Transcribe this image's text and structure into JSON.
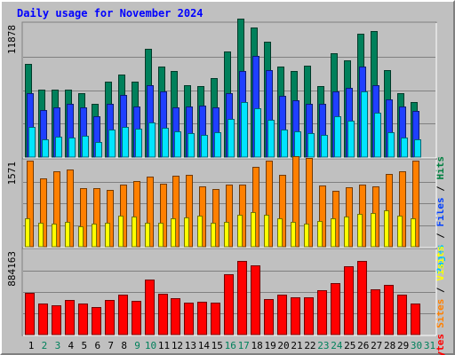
{
  "chart_data": {
    "title": "Daily usage for November 2024",
    "days": [
      "1",
      "2",
      "3",
      "4",
      "5",
      "6",
      "7",
      "8",
      "9",
      "10",
      "11",
      "12",
      "13",
      "14",
      "15",
      "16",
      "17",
      "18",
      "19",
      "20",
      "21",
      "22",
      "23",
      "24",
      "25",
      "26",
      "27",
      "28",
      "29",
      "30",
      "31"
    ],
    "weekend_days": [
      "2",
      "3",
      "9",
      "10",
      "16",
      "17",
      "23",
      "24",
      "30",
      "31"
    ],
    "panels": [
      {
        "type": "bar",
        "label_parts": [
          "Pages",
          "Files",
          "Hits"
        ],
        "label_colors": [
          "#00c0ff",
          "#0040ff",
          "#008040"
        ],
        "max_label": "11878",
        "ymax": 11878,
        "series": [
          {
            "name": "Hits",
            "color": "#00805b",
            "values": [
              8250,
              6000,
              6000,
              6000,
              5700,
              4700,
              6700,
              7300,
              6700,
              9600,
              8000,
              7600,
              6400,
              6300,
              7000,
              9400,
              12300,
              11500,
              10200,
              8000,
              7600,
              8100,
              6300,
              9200,
              8600,
              10900,
              11200,
              7700,
              5700,
              4900,
              0
            ]
          },
          {
            "name": "Files",
            "color": "#1f3fff",
            "values": [
              5700,
              4200,
              4400,
              4700,
              4400,
              3600,
              4700,
              5500,
              4500,
              6400,
              5800,
              4400,
              4500,
              4600,
              4400,
              5700,
              7600,
              9000,
              7700,
              5400,
              5000,
              4700,
              4700,
              5800,
              6100,
              8000,
              6400,
              5100,
              4500,
              4100,
              0
            ]
          },
          {
            "name": "Pages",
            "color": "#00e5ff",
            "values": [
              2700,
              1600,
              1800,
              1700,
              1900,
              1300,
              2400,
              2700,
              2500,
              3100,
              2600,
              2300,
              2100,
              2000,
              2200,
              3400,
              4900,
              4300,
              3300,
              2400,
              2300,
              2100,
              2000,
              3600,
              3200,
              5800,
              3900,
              2200,
              1700,
              1600,
              0
            ]
          }
        ]
      },
      {
        "type": "bar",
        "label_parts": [
          "Sites",
          "Visits"
        ],
        "label_colors": [
          "#ff8000",
          "#ffff00"
        ],
        "max_label": "1571",
        "ymax": 1571,
        "series": [
          {
            "name": "Visits",
            "color": "#ff8000",
            "values": [
              1560,
              1230,
              1370,
              1400,
              1060,
              1060,
              1030,
              1130,
              1190,
              1260,
              1140,
              1290,
              1300,
              1090,
              1050,
              1130,
              1130,
              1450,
              1560,
              1300,
              1630,
              1610,
              1110,
              1010,
              1080,
              1130,
              1090,
              1320,
              1360,
              1560,
              0
            ]
          },
          {
            "name": "Sites",
            "color": "#ffff00",
            "values": [
              510,
              430,
              410,
              450,
              370,
              410,
              440,
              560,
              540,
              440,
              440,
              510,
              530,
              560,
              440,
              450,
              570,
              620,
              580,
              510,
              450,
              420,
              470,
              510,
              540,
              600,
              610,
              650,
              560,
              520,
              0
            ]
          }
        ]
      },
      {
        "type": "bar",
        "label_parts": [
          "KBytes"
        ],
        "label_colors": [
          "#ff0000"
        ],
        "max_label": "884163",
        "ymax": 884163,
        "series": [
          {
            "name": "KBytes",
            "color": "#ff0000",
            "values": [
              430000,
              320000,
              300000,
              360000,
              320000,
              290000,
              360000,
              410000,
              350000,
              570000,
              420000,
              380000,
              330000,
              340000,
              330000,
              630000,
              760000,
              720000,
              370000,
              410000,
              390000,
              390000,
              460000,
              530000,
              710000,
              760000,
              470000,
              520000,
              410000,
              320000,
              0
            ]
          }
        ]
      }
    ]
  }
}
